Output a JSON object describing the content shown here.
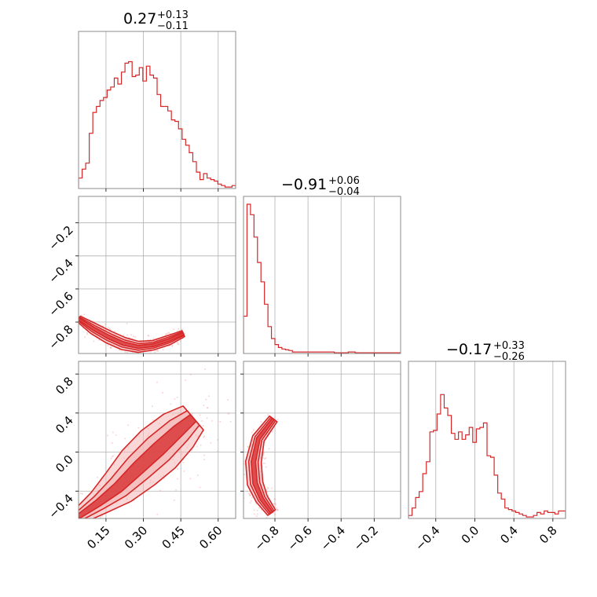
{
  "colors": {
    "line": "#d62728",
    "fill_dark": "#d62728",
    "fill_light": "#f4b6b6",
    "scatter": "#f08a8a"
  },
  "titles": [
    {
      "base": "0.27",
      "plus": "+0.13",
      "minus": "−0.11"
    },
    {
      "base": "−0.91",
      "plus": "+0.06",
      "minus": "−0.04"
    },
    {
      "base": "−0.17",
      "plus": "+0.33",
      "minus": "−0.26"
    }
  ],
  "chart_data": {
    "type": "corner",
    "parameters": [
      {
        "range": [
          0.04,
          0.67
        ],
        "ticks": [
          0.15,
          0.3,
          0.45,
          0.6
        ],
        "tick_labels": [
          "0.15",
          "0.30",
          "0.45",
          "0.60"
        ]
      },
      {
        "range": [
          -0.99,
          -0.04
        ],
        "ticks": [
          -0.8,
          -0.6,
          -0.4,
          -0.2
        ],
        "tick_labels": [
          "−0.8",
          "−0.6",
          "−0.4",
          "−0.2"
        ]
      },
      {
        "range": [
          -0.68,
          0.93
        ],
        "ticks": [
          -0.4,
          0.0,
          0.4,
          0.8
        ],
        "tick_labels": [
          "−0.4",
          "0.0",
          "0.4",
          "0.8"
        ]
      }
    ],
    "histograms": [
      {
        "param": 0,
        "counts": [
          0.07,
          0.13,
          0.17,
          0.37,
          0.51,
          0.55,
          0.59,
          0.61,
          0.66,
          0.68,
          0.74,
          0.7,
          0.78,
          0.84,
          0.85,
          0.75,
          0.76,
          0.81,
          0.72,
          0.82,
          0.76,
          0.74,
          0.63,
          0.55,
          0.55,
          0.52,
          0.46,
          0.45,
          0.4,
          0.33,
          0.29,
          0.24,
          0.18,
          0.11,
          0.06,
          0.1,
          0.07,
          0.06,
          0.05,
          0.03,
          0.02,
          0.01,
          0.01,
          0.02
        ]
      },
      {
        "param": 1,
        "counts": [
          0.25,
          1.0,
          0.93,
          0.78,
          0.61,
          0.48,
          0.33,
          0.18,
          0.1,
          0.06,
          0.04,
          0.03,
          0.025,
          0.02,
          0.01,
          0.01,
          0.01,
          0.01,
          0.01,
          0.01,
          0.01,
          0.01,
          0.01,
          0.01,
          0.01,
          0.01,
          0.005,
          0.005,
          0.005,
          0.005,
          0.01,
          0.01,
          0.005,
          0.005,
          0.005,
          0.005,
          0.005,
          0.005,
          0.005,
          0.005,
          0.005,
          0.005,
          0.005,
          0.005,
          0.005
        ]
      },
      {
        "param": 2,
        "counts": [
          0.02,
          0.07,
          0.14,
          0.18,
          0.3,
          0.38,
          0.58,
          0.59,
          0.7,
          0.83,
          0.74,
          0.69,
          0.57,
          0.53,
          0.58,
          0.53,
          0.56,
          0.61,
          0.51,
          0.6,
          0.61,
          0.64,
          0.42,
          0.41,
          0.29,
          0.17,
          0.13,
          0.07,
          0.06,
          0.05,
          0.04,
          0.03,
          0.02,
          0.01,
          0.01,
          0.02,
          0.04,
          0.03,
          0.05,
          0.04,
          0.04,
          0.03,
          0.05,
          0.05
        ]
      }
    ],
    "pairs": [
      {
        "x_param": 0,
        "y_param": 1,
        "center": [
          [
            0.04,
            -0.78
          ],
          [
            0.1,
            -0.84
          ],
          [
            0.16,
            -0.89
          ],
          [
            0.22,
            -0.93
          ],
          [
            0.28,
            -0.95
          ],
          [
            0.34,
            -0.94
          ],
          [
            0.4,
            -0.91
          ],
          [
            0.46,
            -0.87
          ]
        ],
        "widths": [
          0.02,
          0.035,
          0.04,
          0.04,
          0.035,
          0.03,
          0.03,
          0.02
        ]
      },
      {
        "x_param": 0,
        "y_param": 2,
        "center": [
          [
            0.04,
            -0.66
          ],
          [
            0.12,
            -0.52
          ],
          [
            0.2,
            -0.36
          ],
          [
            0.28,
            -0.16
          ],
          [
            0.36,
            0.03
          ],
          [
            0.44,
            0.22
          ],
          [
            0.5,
            0.35
          ]
        ],
        "widths": [
          0.05,
          0.08,
          0.12,
          0.15,
          0.16,
          0.14,
          0.1
        ]
      },
      {
        "x_param": 1,
        "y_param": 2,
        "center": [
          [
            -0.81,
            0.34
          ],
          [
            -0.9,
            0.14
          ],
          [
            -0.93,
            -0.1
          ],
          [
            -0.92,
            -0.32
          ],
          [
            -0.88,
            -0.48
          ],
          [
            -0.82,
            -0.62
          ]
        ],
        "widths": [
          0.03,
          0.04,
          0.05,
          0.05,
          0.04,
          0.03
        ]
      }
    ]
  }
}
